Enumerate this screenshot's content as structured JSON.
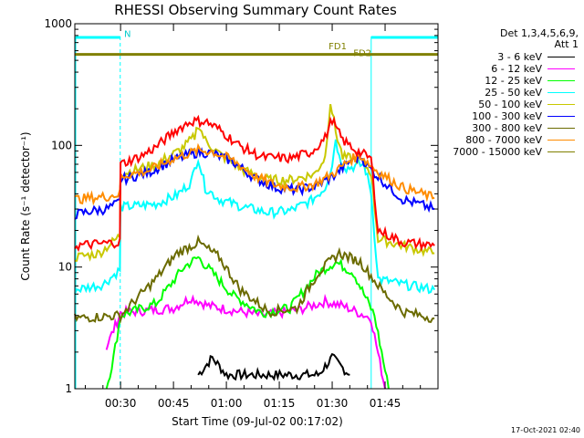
{
  "chart_data": {
    "type": "line",
    "title": "RHESSI Observing Summary Count Rates",
    "xlabel": "Start Time (09-Jul-02 00:17:02)",
    "ylabel": "Count Rate (s⁻¹ detector⁻¹)",
    "yscale": "log",
    "ylim": [
      1,
      1000
    ],
    "xlim_minutes": [
      17.03,
      120
    ],
    "x_tick_minutes": [
      30,
      45,
      60,
      75,
      90,
      105
    ],
    "x_tick_labels": [
      "00:30",
      "00:45",
      "01:00",
      "01:15",
      "01:30",
      "01:45"
    ],
    "y_tick_values": [
      1,
      10,
      100,
      1000
    ],
    "y_tick_labels": [
      "1",
      "10",
      "100",
      "1000"
    ],
    "legend_title": "Det 1,3,4,5,6,9,",
    "legend_att": "Att 1",
    "night_bands": [
      [
        17.03,
        29.9
      ],
      [
        100.8,
        120
      ]
    ],
    "annotations": [
      {
        "text": "N",
        "x": 31.0,
        "y": 780
      },
      {
        "text": "FD1",
        "x": 89.0,
        "y": 615
      },
      {
        "text": "FD2",
        "x": 96.0,
        "y": 540
      }
    ],
    "series": [
      {
        "name": "3 - 6 keV",
        "color": "#000000",
        "points": [
          [
            52,
            1.3
          ],
          [
            56,
            1.8
          ],
          [
            60,
            1.3
          ],
          [
            86,
            1.3
          ],
          [
            90,
            1.8
          ],
          [
            95,
            1.3
          ]
        ]
      },
      {
        "name": "6 - 12 keV",
        "color": "#ff00ff",
        "points": [
          [
            26,
            2.2
          ],
          [
            30,
            4.2
          ],
          [
            45,
            4.6
          ],
          [
            50,
            5.6
          ],
          [
            55,
            4.8
          ],
          [
            62,
            4.4
          ],
          [
            70,
            4.0
          ],
          [
            80,
            4.4
          ],
          [
            88,
            5.2
          ],
          [
            93,
            4.8
          ],
          [
            101,
            3.8
          ],
          [
            105,
            1.0
          ]
        ]
      },
      {
        "name": "12 - 25 keV",
        "color": "#00ff00",
        "points": [
          [
            26,
            1.0
          ],
          [
            28,
            1.8
          ],
          [
            30,
            4.0
          ],
          [
            40,
            5.0
          ],
          [
            48,
            10.0
          ],
          [
            52,
            12.0
          ],
          [
            56,
            9.0
          ],
          [
            62,
            5.8
          ],
          [
            70,
            4.2
          ],
          [
            78,
            4.6
          ],
          [
            86,
            9.0
          ],
          [
            91,
            11.0
          ],
          [
            96,
            9.0
          ],
          [
            102,
            4.0
          ],
          [
            106,
            1.0
          ]
        ]
      },
      {
        "name": "25 - 50 keV",
        "color": "#00ffff",
        "points": [
          [
            17.03,
            6.5
          ],
          [
            25,
            7.2
          ],
          [
            29.8,
            9.5
          ],
          [
            30,
            31
          ],
          [
            35,
            32
          ],
          [
            40,
            33
          ],
          [
            46,
            39
          ],
          [
            50,
            50
          ],
          [
            52,
            80
          ],
          [
            54,
            45
          ],
          [
            58,
            36
          ],
          [
            65,
            31
          ],
          [
            72,
            28
          ],
          [
            78,
            29
          ],
          [
            84,
            35
          ],
          [
            88,
            45
          ],
          [
            90,
            70
          ],
          [
            91,
            115
          ],
          [
            92,
            80
          ],
          [
            94,
            65
          ],
          [
            99,
            70
          ],
          [
            101,
            42
          ],
          [
            103,
            8.0
          ],
          [
            110,
            7.2
          ],
          [
            119,
            6.5
          ]
        ]
      },
      {
        "name": "50 - 100 keV",
        "color": "#c8c800",
        "points": [
          [
            17.03,
            12.0
          ],
          [
            24,
            13
          ],
          [
            29.8,
            18
          ],
          [
            30,
            58
          ],
          [
            40,
            70
          ],
          [
            47,
            92
          ],
          [
            51,
            118
          ],
          [
            52,
            150
          ],
          [
            54,
            110
          ],
          [
            58,
            85
          ],
          [
            65,
            62
          ],
          [
            72,
            52
          ],
          [
            78,
            52
          ],
          [
            85,
            58
          ],
          [
            88,
            80
          ],
          [
            89.5,
            230
          ],
          [
            91,
            130
          ],
          [
            93,
            80
          ],
          [
            98,
            76
          ],
          [
            101,
            60
          ],
          [
            103,
            17
          ],
          [
            110,
            15
          ],
          [
            119,
            13
          ]
        ]
      },
      {
        "name": "100 - 300 keV",
        "color": "#0000ff",
        "points": [
          [
            17.03,
            27
          ],
          [
            22,
            29
          ],
          [
            26,
            30
          ],
          [
            29.8,
            34
          ],
          [
            30,
            52
          ],
          [
            38,
            60
          ],
          [
            45,
            76
          ],
          [
            52,
            88
          ],
          [
            56,
            86
          ],
          [
            62,
            73
          ],
          [
            68,
            54
          ],
          [
            74,
            45
          ],
          [
            80,
            43
          ],
          [
            85,
            46
          ],
          [
            90,
            55
          ],
          [
            95,
            74
          ],
          [
            98,
            81
          ],
          [
            101,
            63
          ],
          [
            104,
            52
          ],
          [
            110,
            36
          ],
          [
            119,
            30
          ]
        ]
      },
      {
        "name": "300 - 800 keV",
        "color": "#6b6b00",
        "points": [
          [
            17.03,
            3.8
          ],
          [
            30,
            4.0
          ],
          [
            40,
            8.0
          ],
          [
            46,
            13
          ],
          [
            52,
            16
          ],
          [
            58,
            12
          ],
          [
            64,
            6.5
          ],
          [
            72,
            4.3
          ],
          [
            80,
            4.6
          ],
          [
            86,
            9.0
          ],
          [
            92,
            13
          ],
          [
            98,
            11
          ],
          [
            104,
            6.5
          ],
          [
            110,
            4.3
          ],
          [
            119,
            3.8
          ]
        ]
      },
      {
        "name": "800 - 7000 keV",
        "color": "#ff8c00",
        "points": [
          [
            17.03,
            36
          ],
          [
            26,
            38
          ],
          [
            29.8,
            40
          ],
          [
            30,
            56
          ],
          [
            38,
            62
          ],
          [
            45,
            78
          ],
          [
            52,
            91
          ],
          [
            56,
            89
          ],
          [
            62,
            75
          ],
          [
            68,
            56
          ],
          [
            74,
            47
          ],
          [
            80,
            45
          ],
          [
            85,
            48
          ],
          [
            90,
            58
          ],
          [
            95,
            76
          ],
          [
            98,
            83
          ],
          [
            101,
            68
          ],
          [
            104,
            58
          ],
          [
            110,
            45
          ],
          [
            119,
            37
          ]
        ]
      },
      {
        "name": "7000 - 15000 keV",
        "color": "#808000",
        "points": [
          [
            17.03,
            560
          ],
          [
            120,
            560
          ]
        ]
      },
      {
        "name": "red",
        "color": "#ff0000",
        "points": [
          [
            17.03,
            15
          ],
          [
            29.8,
            16
          ],
          [
            30,
            70
          ],
          [
            36,
            82
          ],
          [
            40,
            97
          ],
          [
            46,
            135
          ],
          [
            50,
            158
          ],
          [
            54,
            158
          ],
          [
            58,
            135
          ],
          [
            64,
            98
          ],
          [
            70,
            80
          ],
          [
            78,
            78
          ],
          [
            84,
            88
          ],
          [
            88,
            115
          ],
          [
            90,
            165
          ],
          [
            91,
            140
          ],
          [
            93,
            110
          ],
          [
            97,
            90
          ],
          [
            101,
            78
          ],
          [
            103,
            20
          ],
          [
            110,
            16
          ],
          [
            119,
            15
          ]
        ]
      }
    ],
    "legend_entries": [
      {
        "label": "3 - 6 keV",
        "color": "#000000"
      },
      {
        "label": "6 - 12 keV",
        "color": "#ff00ff"
      },
      {
        "label": "12 - 25 keV",
        "color": "#00ff00"
      },
      {
        "label": "25 - 50 keV",
        "color": "#00ffff"
      },
      {
        "label": "50 - 100 keV",
        "color": "#c8c800"
      },
      {
        "label": "100 - 300 keV",
        "color": "#0000ff"
      },
      {
        "label": "300 - 800 keV",
        "color": "#6b6b00"
      },
      {
        "label": "800 - 7000 keV",
        "color": "#ff8c00"
      },
      {
        "label": "7000 - 15000 keV",
        "color": "#808000"
      }
    ]
  },
  "footer": {
    "timestamp": "17-Oct-2021 02:40"
  }
}
